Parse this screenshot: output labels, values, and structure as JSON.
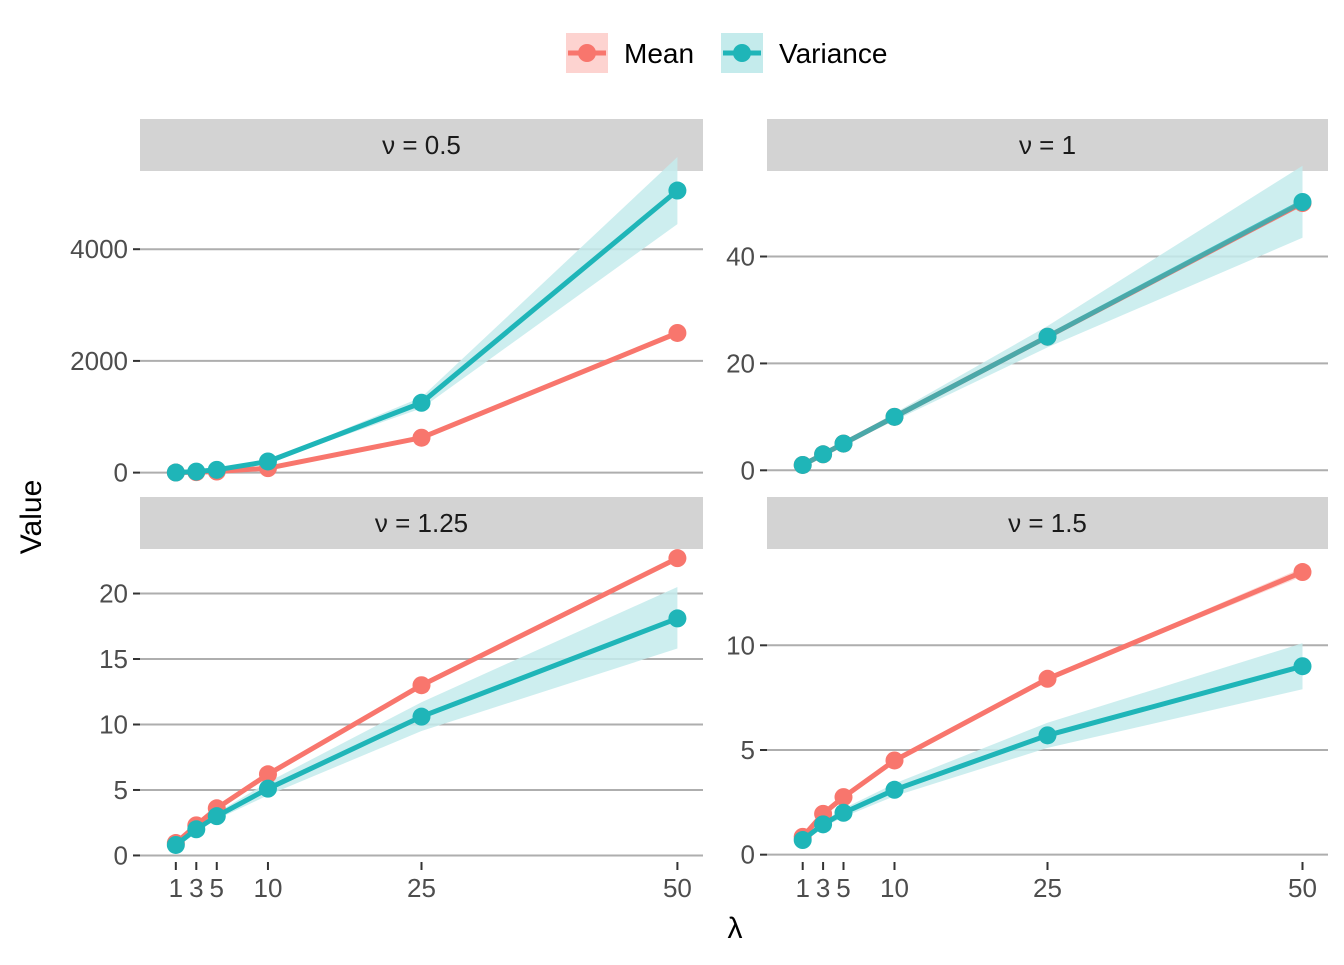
{
  "chart_data": {
    "type": "line",
    "ylabel": "Value",
    "xlabel": "λ",
    "x": [
      1,
      3,
      5,
      10,
      25,
      50
    ],
    "x_tick_labels": [
      "1",
      "3",
      "5",
      "10",
      "25",
      "50"
    ],
    "x_range": [
      -2.5,
      52.5
    ],
    "legend": {
      "placement": "top",
      "entries": [
        {
          "label": "Mean",
          "color": "#F8766D",
          "band_color": "#FDD3D0"
        },
        {
          "label": "Variance",
          "color": "#1FB5B8",
          "band_color": "#C4EBEC"
        }
      ]
    },
    "grid": "horizontal major lines only",
    "panels": [
      {
        "strip": "ν = 0.5",
        "ylim": [
          -150,
          5400
        ],
        "y_ticks": [
          0,
          2000,
          4000
        ],
        "y_tick_labels": [
          "0",
          "2000",
          "4000"
        ],
        "series": [
          {
            "name": "Mean",
            "values": [
              2,
              8,
              20,
              80,
              625,
              2500
            ],
            "band_lower": [
              2,
              8,
              20,
              80,
              625,
              2500
            ],
            "band_upper": [
              2,
              8,
              20,
              80,
              625,
              2500
            ]
          },
          {
            "name": "Variance",
            "values": [
              2,
              18,
              50,
              200,
              1250,
              5050
            ],
            "band_lower": [
              2,
              17,
              47,
              190,
              1150,
              4450
            ],
            "band_upper": [
              2,
              19,
              53,
              210,
              1350,
              5650
            ]
          }
        ]
      },
      {
        "strip": "ν = 1",
        "ylim": [
          -2,
          56
        ],
        "y_ticks": [
          0,
          20,
          40
        ],
        "y_tick_labels": [
          "0",
          "20",
          "40"
        ],
        "series": [
          {
            "name": "Mean",
            "values": [
              1,
              3,
              5,
              10,
              25,
              50
            ],
            "band_lower": [
              1,
              3,
              5,
              10,
              25,
              50
            ],
            "band_upper": [
              1,
              3,
              5,
              10,
              25,
              50
            ]
          },
          {
            "name": "Variance",
            "values": [
              1,
              3,
              5,
              10,
              25,
              50.2
            ],
            "band_lower": [
              0.95,
              2.85,
              4.7,
              9.3,
              23,
              43.5
            ],
            "band_upper": [
              1.05,
              3.15,
              5.3,
              10.7,
              27,
              57
            ]
          }
        ]
      },
      {
        "strip": "ν = 1.25",
        "ylim": [
          -0.5,
          23.4
        ],
        "y_ticks": [
          0,
          5,
          10,
          15,
          20
        ],
        "y_tick_labels": [
          "0",
          "5",
          "10",
          "15",
          "20"
        ],
        "series": [
          {
            "name": "Mean",
            "values": [
              0.95,
              2.3,
              3.6,
              6.2,
              13.0,
              22.7
            ],
            "band_lower": [
              0.95,
              2.3,
              3.6,
              6.2,
              13.0,
              22.6
            ],
            "band_upper": [
              0.95,
              2.3,
              3.6,
              6.2,
              13.0,
              22.8
            ]
          },
          {
            "name": "Variance",
            "values": [
              0.8,
              2.0,
              3.0,
              5.1,
              10.6,
              18.1
            ],
            "band_lower": [
              0.75,
              1.85,
              2.75,
              4.6,
              9.5,
              15.8
            ],
            "band_upper": [
              0.85,
              2.15,
              3.25,
              5.6,
              11.7,
              20.5
            ]
          }
        ]
      },
      {
        "strip": "ν = 1.5",
        "ylim": [
          -0.35,
          14.6
        ],
        "y_ticks": [
          0,
          5,
          10
        ],
        "y_tick_labels": [
          "0",
          "5",
          "10"
        ],
        "series": [
          {
            "name": "Mean",
            "values": [
              0.85,
              1.95,
              2.75,
              4.5,
              8.4,
              13.5
            ],
            "band_lower": [
              0.85,
              1.95,
              2.75,
              4.5,
              8.35,
              13.3
            ],
            "band_upper": [
              0.85,
              1.95,
              2.75,
              4.5,
              8.45,
              13.7
            ]
          },
          {
            "name": "Variance",
            "values": [
              0.7,
              1.45,
              2.0,
              3.1,
              5.7,
              9.0
            ],
            "band_lower": [
              0.65,
              1.3,
              1.8,
              2.8,
              5.1,
              7.9
            ],
            "band_upper": [
              0.75,
              1.6,
              2.2,
              3.4,
              6.3,
              10.1
            ]
          }
        ]
      }
    ]
  }
}
